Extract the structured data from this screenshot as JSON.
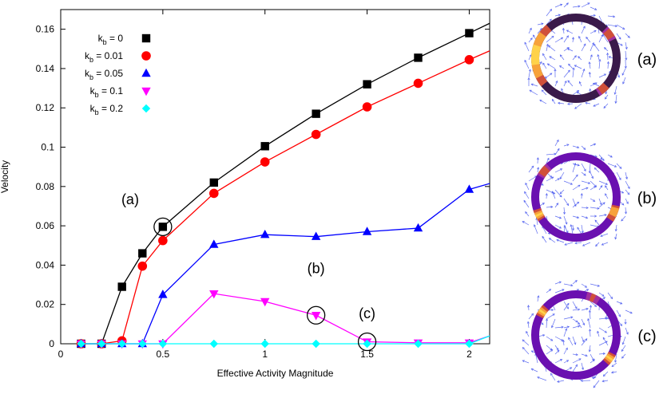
{
  "chart_data": {
    "type": "line",
    "xlabel": "Effective Activity Magnitude",
    "ylabel": "Velocity",
    "xlim": [
      0,
      2.1
    ],
    "ylim": [
      0,
      0.17
    ],
    "x_ticks": [
      "0",
      "0.5",
      "1",
      "1.5",
      "2"
    ],
    "y_ticks": [
      "0",
      "0.02",
      "0.04",
      "0.06",
      "0.08",
      "0.1",
      "0.12",
      "0.14",
      "0.16"
    ],
    "legend_position": "top-left",
    "series": [
      {
        "name_base": "k",
        "name_sub": "b",
        "name_value": " = 0",
        "color": "#000000",
        "marker": "square",
        "x": [
          0.1,
          0.2,
          0.3,
          0.4,
          0.5,
          0.75,
          1.0,
          1.25,
          1.5,
          1.75,
          2.0
        ],
        "y": [
          0,
          0,
          0.029,
          0.046,
          0.0595,
          0.082,
          0.1005,
          0.117,
          0.132,
          0.1455,
          0.158
        ],
        "line_x": [
          0.1,
          0.2,
          0.3,
          0.4,
          0.5,
          0.75,
          1.0,
          1.25,
          1.5,
          1.75,
          2.0,
          2.1
        ],
        "line_y": [
          0,
          0,
          0.029,
          0.046,
          0.0595,
          0.082,
          0.1005,
          0.117,
          0.132,
          0.1455,
          0.158,
          0.163
        ]
      },
      {
        "name_base": "k",
        "name_sub": "b",
        "name_value": " = 0.01",
        "color": "#ff0000",
        "marker": "circle",
        "x": [
          0.1,
          0.2,
          0.3,
          0.4,
          0.5,
          0.75,
          1.0,
          1.25,
          1.5,
          1.75,
          2.0
        ],
        "y": [
          0,
          0,
          0.0015,
          0.0395,
          0.0525,
          0.0765,
          0.0925,
          0.1065,
          0.1205,
          0.1325,
          0.1445
        ],
        "line_x": [
          0.1,
          0.2,
          0.3,
          0.4,
          0.5,
          0.75,
          1.0,
          1.25,
          1.5,
          1.75,
          2.0,
          2.1
        ],
        "line_y": [
          0,
          0,
          0.0015,
          0.0395,
          0.0525,
          0.0765,
          0.0925,
          0.1065,
          0.1205,
          0.1325,
          0.1445,
          0.149
        ]
      },
      {
        "name_base": "k",
        "name_sub": "b",
        "name_value": " = 0.05",
        "color": "#0000ff",
        "marker": "triangle-up",
        "x": [
          0.1,
          0.2,
          0.3,
          0.4,
          0.5,
          0.75,
          1.0,
          1.25,
          1.5,
          1.75,
          2.0
        ],
        "y": [
          0,
          0,
          0,
          0,
          0.025,
          0.0505,
          0.0555,
          0.0545,
          0.057,
          0.0588,
          0.0785
        ],
        "line_x": [
          0.1,
          0.2,
          0.3,
          0.4,
          0.5,
          0.75,
          1.0,
          1.25,
          1.5,
          1.75,
          2.0,
          2.1
        ],
        "line_y": [
          0,
          0,
          0,
          0,
          0.025,
          0.0505,
          0.0555,
          0.0545,
          0.057,
          0.0588,
          0.0785,
          0.0815
        ]
      },
      {
        "name_base": "k",
        "name_sub": "b",
        "name_value": " = 0.1",
        "color": "#ff00ff",
        "marker": "triangle-down",
        "x": [
          0.1,
          0.2,
          0.3,
          0.4,
          0.5,
          0.75,
          1.0,
          1.25,
          1.5,
          1.75,
          2.0
        ],
        "y": [
          0,
          0,
          0,
          0,
          0,
          0.0255,
          0.0215,
          0.0145,
          0.001,
          0.0005,
          0.0005
        ],
        "line_x": [
          0.1,
          0.2,
          0.3,
          0.4,
          0.5,
          0.75,
          1.0,
          1.25,
          1.5,
          1.75,
          2.0,
          2.1
        ],
        "line_y": [
          0,
          0,
          0,
          0,
          0,
          0.0255,
          0.0215,
          0.0145,
          0.001,
          0.0005,
          0.0005,
          0.004
        ]
      },
      {
        "name_base": "k",
        "name_sub": "b",
        "name_value": " = 0.2",
        "color": "#00ffff",
        "marker": "diamond",
        "x": [
          0.1,
          0.2,
          0.3,
          0.4,
          0.5,
          0.75,
          1.0,
          1.25,
          1.5,
          1.75,
          2.0
        ],
        "y": [
          0,
          0,
          0,
          0,
          0,
          0,
          0,
          0,
          0,
          0,
          0
        ],
        "line_x": [
          0.1,
          0.2,
          0.3,
          0.4,
          0.5,
          0.75,
          1.0,
          1.25,
          1.5,
          1.75,
          2.0,
          2.1
        ],
        "line_y": [
          0,
          0,
          0,
          0,
          0,
          0,
          0,
          0,
          0,
          0,
          0,
          0.004
        ]
      }
    ],
    "annotations": [
      {
        "label": "(a)",
        "x": 0.5,
        "y": 0.0595,
        "label_x": 0.34,
        "label_y": 0.071
      },
      {
        "label": "(b)",
        "x": 1.25,
        "y": 0.0145,
        "label_x": 1.25,
        "label_y": 0.036
      },
      {
        "label": "(c)",
        "x": 1.5,
        "y": 0.001,
        "label_x": 1.5,
        "label_y": 0.013
      }
    ]
  },
  "snapshots": [
    {
      "label": "(a)",
      "arrow_color": "#4455ee"
    },
    {
      "label": "(b)",
      "arrow_color": "#4455ee"
    },
    {
      "label": "(c)",
      "arrow_color": "#4455ee"
    }
  ]
}
